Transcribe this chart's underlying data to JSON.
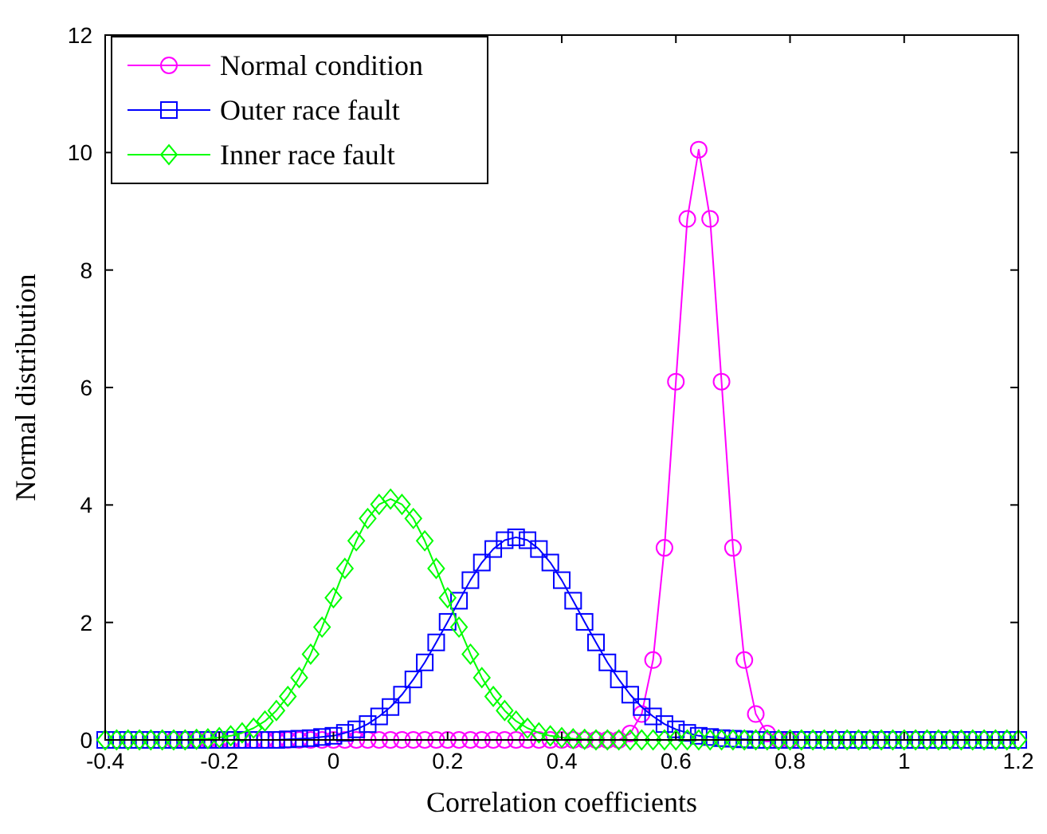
{
  "chart_data": {
    "type": "line",
    "xlabel": "Correlation coefficients",
    "ylabel": "Normal distribution",
    "xlim": [
      -0.4,
      1.2
    ],
    "xticks": [
      -0.4,
      -0.2,
      0,
      0.2,
      0.4,
      0.6,
      0.8,
      1,
      1.2
    ],
    "ylim": [
      0,
      12
    ],
    "yticks": [
      0,
      2,
      4,
      6,
      8,
      10,
      12
    ],
    "grid": false,
    "legend": "top left",
    "x": [
      -0.4,
      -0.38,
      -0.36,
      -0.34,
      -0.32,
      -0.3,
      -0.28,
      -0.26,
      -0.24,
      -0.22,
      -0.2,
      -0.18,
      -0.16,
      -0.14,
      -0.12,
      -0.1,
      -0.08,
      -0.06,
      -0.04,
      -0.02,
      0,
      0.02,
      0.04,
      0.06,
      0.08,
      0.1,
      0.12,
      0.14,
      0.16,
      0.18,
      0.2,
      0.22,
      0.24,
      0.26,
      0.28,
      0.3,
      0.32,
      0.34,
      0.36,
      0.38,
      0.4,
      0.42,
      0.44,
      0.46,
      0.48,
      0.5,
      0.52,
      0.54,
      0.56,
      0.58,
      0.6,
      0.62,
      0.64,
      0.66,
      0.68,
      0.7,
      0.72,
      0.74,
      0.76,
      0.78,
      0.8,
      0.82,
      0.84,
      0.86,
      0.88,
      0.9,
      0.92,
      0.94,
      0.96,
      0.98,
      1,
      1.02,
      1.04,
      1.06,
      1.08,
      1.1,
      1.12,
      1.14,
      1.16,
      1.18,
      1.2
    ],
    "series": [
      {
        "name": "Normal condition",
        "color": "#ff00ff",
        "marker": "circle",
        "values": [
          null,
          null,
          null,
          null,
          null,
          null,
          0,
          0,
          0,
          0,
          0,
          0,
          0,
          0,
          0,
          0,
          0,
          0,
          0,
          0,
          0,
          0,
          0,
          0,
          0,
          0,
          0,
          0,
          0,
          0,
          0,
          0,
          0,
          0,
          0,
          0,
          0,
          0,
          0,
          0,
          0,
          0,
          0,
          0,
          0,
          0,
          0.11,
          0.44,
          1.36,
          3.27,
          6.1,
          8.87,
          10.05,
          8.87,
          6.1,
          3.27,
          1.36,
          0.44,
          0.11,
          0,
          0,
          null,
          null,
          null,
          null,
          null,
          null,
          null,
          null,
          null,
          null,
          null,
          null,
          null,
          null,
          null,
          null,
          null,
          null,
          null,
          null
        ]
      },
      {
        "name": "Outer race fault",
        "color": "#0000ff",
        "marker": "square",
        "values": [
          0,
          0,
          0,
          0,
          0,
          0,
          0,
          0,
          0,
          0,
          0,
          0,
          0,
          0,
          0,
          0,
          0.01,
          0.02,
          0.03,
          0.05,
          0.07,
          0.12,
          0.18,
          0.27,
          0.4,
          0.56,
          0.77,
          1.03,
          1.32,
          1.66,
          2.01,
          2.37,
          2.72,
          3.02,
          3.25,
          3.4,
          3.45,
          3.4,
          3.25,
          3.02,
          2.72,
          2.37,
          2.01,
          1.66,
          1.32,
          1.03,
          0.77,
          0.56,
          0.4,
          0.27,
          0.18,
          0.12,
          0.07,
          0.05,
          0.03,
          0.02,
          0.01,
          0,
          0,
          0,
          0,
          0,
          0,
          0,
          0,
          0,
          0,
          0,
          0,
          0,
          0,
          0,
          0,
          0,
          0,
          0,
          0,
          0,
          0,
          0,
          0
        ]
      },
      {
        "name": "Inner race fault",
        "color": "#00ff00",
        "marker": "diamond",
        "values": [
          0,
          0,
          0,
          0,
          0,
          0,
          0,
          0,
          0.01,
          0.02,
          0.04,
          0.07,
          0.12,
          0.2,
          0.32,
          0.5,
          0.74,
          1.06,
          1.46,
          1.92,
          2.42,
          2.92,
          3.39,
          3.77,
          4.01,
          4.1,
          4.01,
          3.77,
          3.39,
          2.92,
          2.42,
          1.92,
          1.46,
          1.06,
          0.74,
          0.5,
          0.32,
          0.2,
          0.12,
          0.07,
          0.04,
          0.02,
          0.01,
          0,
          0,
          0,
          0,
          0,
          0,
          0,
          0,
          0,
          0,
          0,
          0,
          0,
          0,
          0,
          0,
          0,
          0,
          0,
          0,
          0,
          0,
          0,
          0,
          0,
          0,
          0,
          0,
          0,
          0,
          0,
          0,
          0,
          0,
          0,
          0,
          0,
          0
        ]
      }
    ]
  }
}
